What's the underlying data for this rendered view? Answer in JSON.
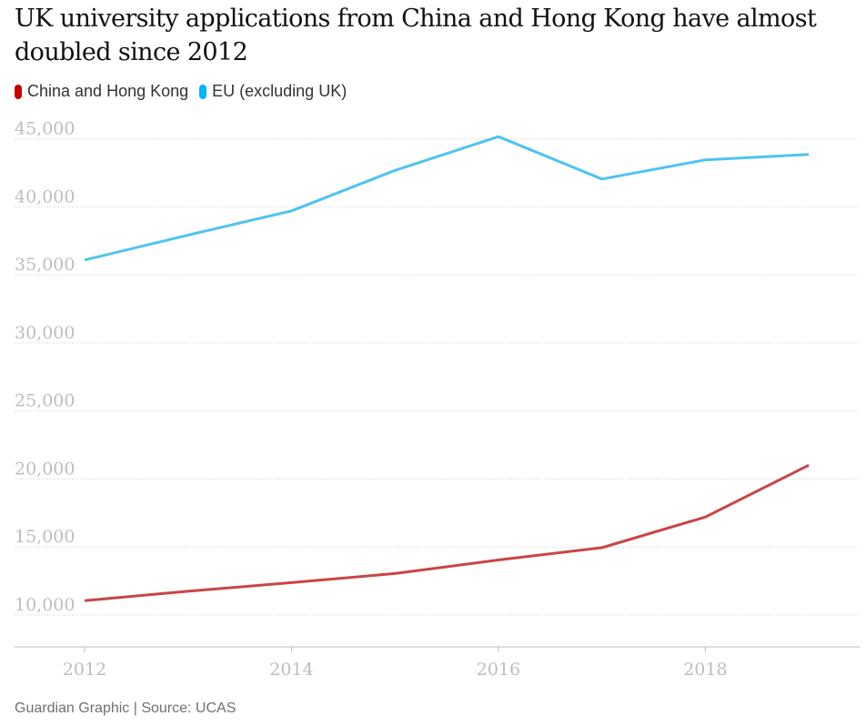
{
  "title": "UK university applications from China and Hong Kong have almost doubled since 2012",
  "legend": [
    {
      "label": "China and Hong Kong",
      "color": "#c70000"
    },
    {
      "label": "EU (excluding UK)",
      "color": "#00b2ff"
    }
  ],
  "source": "Guardian Graphic | Source: UCAS",
  "chart_data": {
    "type": "line",
    "title": "UK university applications from China and Hong Kong have almost doubled since 2012",
    "xlabel": "",
    "ylabel": "",
    "x": [
      2012,
      2013,
      2014,
      2015,
      2016,
      2017,
      2018,
      2019
    ],
    "x_ticks": [
      "2012",
      "2014",
      "2016",
      "2018"
    ],
    "y_ticks": [
      "10,000",
      "15,000",
      "20,000",
      "25,000",
      "30,000",
      "35,000",
      "40,000",
      "45,000"
    ],
    "ylim": [
      9000,
      45500
    ],
    "xlim": [
      2012,
      2019.5
    ],
    "grid": true,
    "series": [
      {
        "name": "China and Hong Kong",
        "color": "#c94545",
        "values": [
          11060,
          11750,
          12380,
          13050,
          14050,
          14950,
          17200,
          21010
        ]
      },
      {
        "name": "EU (excluding UK)",
        "color": "#4fc3f0",
        "values": [
          36090,
          37920,
          39700,
          42670,
          45150,
          42040,
          43450,
          43850
        ]
      }
    ]
  }
}
